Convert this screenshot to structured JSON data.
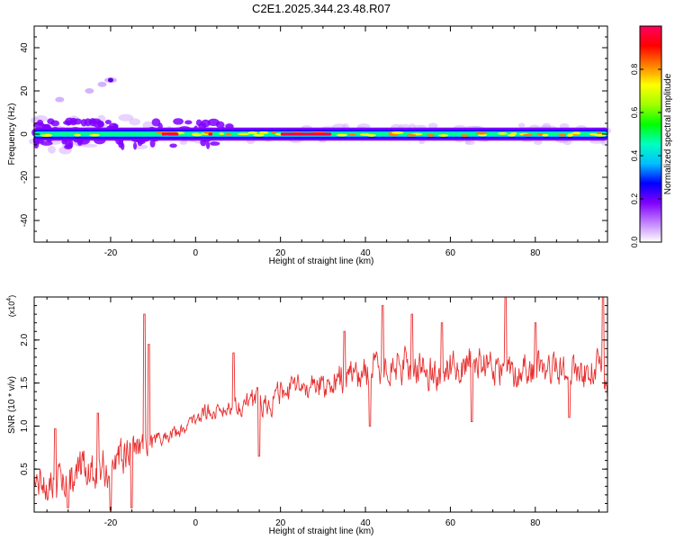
{
  "title": "C2E1.2025.344.23.48.R07",
  "chart_data": [
    {
      "type": "heatmap",
      "xlabel": "Height of straight line (km)",
      "ylabel": "Frequency (Hz)",
      "xlim": [
        -38,
        97
      ],
      "ylim": [
        -50,
        50
      ],
      "x_ticks": [
        -20,
        0,
        20,
        40,
        60,
        80
      ],
      "y_ticks": [
        -40,
        -20,
        0,
        20,
        40
      ],
      "colorbar": {
        "label": "Normalized spectral amplitude",
        "range": [
          0,
          1
        ],
        "ticks": [
          0.0,
          0.2,
          0.4,
          0.6,
          0.8
        ],
        "colors": [
          "#ffffff",
          "#c080ff",
          "#8000ff",
          "#0000ff",
          "#00c0ff",
          "#00ffc0",
          "#00ff00",
          "#a0ff00",
          "#ffff00",
          "#ff8000",
          "#ff0000",
          "#ff0060"
        ]
      },
      "main_band": {
        "freq_hz": 0,
        "x_range": [
          -38,
          97
        ]
      },
      "hot_segments": [
        [
          -8,
          -4
        ],
        [
          3,
          4
        ],
        [
          20,
          32
        ]
      ],
      "aliased_trace": [
        [
          -32,
          16
        ],
        [
          -25,
          20
        ],
        [
          -22,
          23
        ],
        [
          -20,
          25
        ]
      ]
    },
    {
      "type": "line",
      "xlabel": "Height of straight line (km)",
      "ylabel": "SNR (10 * v/v)",
      "exponent_label": "(x10",
      "exponent_power": "4",
      "exponent_close": ")",
      "xlim": [
        -38,
        97
      ],
      "ylim": [
        0,
        2.5
      ],
      "x_ticks": [
        -20,
        0,
        20,
        40,
        60,
        80
      ],
      "y_ticks": [
        "0.5",
        "1.0",
        "1.5",
        "2.0"
      ],
      "series": [
        {
          "color": "#e83030",
          "x": [
            -38,
            -30,
            -22,
            -18,
            -14,
            -10,
            -6,
            -2,
            2,
            6,
            10,
            14,
            18,
            22,
            26,
            30,
            34,
            38,
            42,
            46,
            50,
            54,
            58,
            62,
            66,
            70,
            74,
            78,
            82,
            86,
            90,
            94,
            97
          ],
          "y": [
            0.35,
            0.4,
            0.5,
            0.6,
            0.8,
            0.8,
            0.9,
            1.0,
            1.15,
            1.2,
            1.25,
            1.3,
            1.3,
            1.4,
            1.45,
            1.5,
            1.55,
            1.6,
            1.65,
            1.7,
            1.7,
            1.65,
            1.6,
            1.7,
            1.75,
            1.7,
            1.6,
            1.7,
            1.65,
            1.7,
            1.6,
            1.7,
            1.5
          ],
          "spread": [
            0.25,
            0.3,
            0.35,
            0.3,
            0.25,
            0.15,
            0.12,
            0.1,
            0.12,
            0.12,
            0.15,
            0.2,
            0.2,
            0.2,
            0.2,
            0.22,
            0.25,
            0.25,
            0.25,
            0.25,
            0.25,
            0.25,
            0.25,
            0.25,
            0.25,
            0.25,
            0.25,
            0.25,
            0.25,
            0.25,
            0.25,
            0.25,
            0.25
          ],
          "peaks": [
            [
              -33,
              0.97
            ],
            [
              -23,
              1.15
            ],
            [
              -15,
              1.45
            ],
            [
              -12,
              2.3
            ],
            [
              -11,
              1.95
            ],
            [
              9,
              1.85
            ],
            [
              35,
              2.1
            ],
            [
              44,
              2.4
            ],
            [
              51,
              2.3
            ],
            [
              58,
              2.2
            ],
            [
              65,
              2.25
            ],
            [
              73,
              2.5
            ],
            [
              80,
              2.2
            ],
            [
              96,
              2.5
            ]
          ],
          "dips": [
            [
              -20,
              0.02
            ],
            [
              -15,
              0.05
            ],
            [
              -30,
              0.05
            ],
            [
              15,
              0.65
            ],
            [
              41,
              1.0
            ],
            [
              65,
              1.05
            ],
            [
              88,
              1.1
            ]
          ]
        }
      ]
    }
  ]
}
